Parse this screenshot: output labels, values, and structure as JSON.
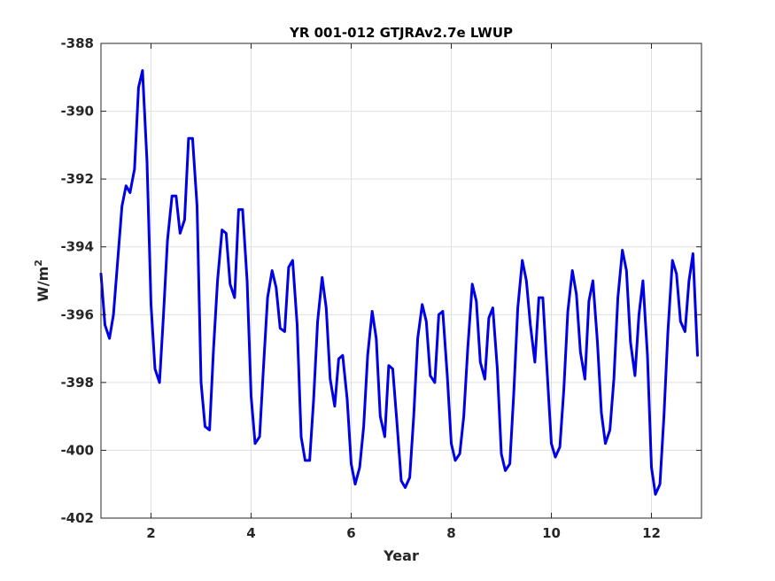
{
  "chart_data": {
    "type": "line",
    "title": "YR 001-012 GTJRAv2.7e LWUP",
    "xlabel": "Year",
    "ylabel_base": "W/m",
    "ylabel_sup": "2",
    "xlim": [
      1,
      13
    ],
    "ylim": [
      -402,
      -388
    ],
    "xticks": [
      2,
      4,
      6,
      8,
      10,
      12
    ],
    "yticks": [
      -402,
      -400,
      -398,
      -396,
      -394,
      -392,
      -390,
      -388
    ],
    "grid": true,
    "series": [
      {
        "color": "#0000e6",
        "points": [
          [
            1.0,
            -394.8
          ],
          [
            1.08,
            -396.3
          ],
          [
            1.17,
            -396.7
          ],
          [
            1.25,
            -396.0
          ],
          [
            1.33,
            -394.5
          ],
          [
            1.42,
            -392.8
          ],
          [
            1.5,
            -392.2
          ],
          [
            1.58,
            -392.4
          ],
          [
            1.67,
            -391.7
          ],
          [
            1.75,
            -389.3
          ],
          [
            1.83,
            -388.8
          ],
          [
            1.92,
            -391.5
          ],
          [
            2.0,
            -395.7
          ],
          [
            2.08,
            -397.6
          ],
          [
            2.17,
            -398.0
          ],
          [
            2.25,
            -396.0
          ],
          [
            2.33,
            -393.8
          ],
          [
            2.42,
            -392.5
          ],
          [
            2.5,
            -392.5
          ],
          [
            2.58,
            -393.6
          ],
          [
            2.67,
            -393.2
          ],
          [
            2.75,
            -390.8
          ],
          [
            2.83,
            -390.8
          ],
          [
            2.92,
            -392.8
          ],
          [
            3.0,
            -398.0
          ],
          [
            3.08,
            -399.3
          ],
          [
            3.17,
            -399.4
          ],
          [
            3.25,
            -397.0
          ],
          [
            3.33,
            -395.0
          ],
          [
            3.42,
            -393.5
          ],
          [
            3.5,
            -393.6
          ],
          [
            3.58,
            -395.1
          ],
          [
            3.67,
            -395.5
          ],
          [
            3.75,
            -392.9
          ],
          [
            3.83,
            -392.9
          ],
          [
            3.92,
            -395.0
          ],
          [
            4.0,
            -398.4
          ],
          [
            4.08,
            -399.8
          ],
          [
            4.17,
            -399.6
          ],
          [
            4.25,
            -397.5
          ],
          [
            4.33,
            -395.5
          ],
          [
            4.42,
            -394.7
          ],
          [
            4.5,
            -395.2
          ],
          [
            4.58,
            -396.4
          ],
          [
            4.67,
            -396.5
          ],
          [
            4.75,
            -394.6
          ],
          [
            4.83,
            -394.4
          ],
          [
            4.92,
            -396.3
          ],
          [
            5.0,
            -399.6
          ],
          [
            5.08,
            -400.3
          ],
          [
            5.17,
            -400.3
          ],
          [
            5.25,
            -398.5
          ],
          [
            5.33,
            -396.2
          ],
          [
            5.42,
            -394.9
          ],
          [
            5.5,
            -395.8
          ],
          [
            5.58,
            -397.9
          ],
          [
            5.67,
            -398.7
          ],
          [
            5.75,
            -397.3
          ],
          [
            5.83,
            -397.2
          ],
          [
            5.92,
            -398.5
          ],
          [
            6.0,
            -400.4
          ],
          [
            6.08,
            -401.0
          ],
          [
            6.17,
            -400.5
          ],
          [
            6.25,
            -399.3
          ],
          [
            6.33,
            -397.2
          ],
          [
            6.42,
            -395.9
          ],
          [
            6.5,
            -396.7
          ],
          [
            6.58,
            -399.0
          ],
          [
            6.67,
            -399.6
          ],
          [
            6.75,
            -397.5
          ],
          [
            6.83,
            -397.6
          ],
          [
            6.92,
            -399.3
          ],
          [
            7.0,
            -400.9
          ],
          [
            7.08,
            -401.1
          ],
          [
            7.17,
            -400.8
          ],
          [
            7.25,
            -399.0
          ],
          [
            7.33,
            -396.7
          ],
          [
            7.42,
            -395.7
          ],
          [
            7.5,
            -396.2
          ],
          [
            7.58,
            -397.8
          ],
          [
            7.67,
            -398.0
          ],
          [
            7.75,
            -396.0
          ],
          [
            7.83,
            -395.9
          ],
          [
            7.92,
            -397.8
          ],
          [
            8.0,
            -399.8
          ],
          [
            8.08,
            -400.3
          ],
          [
            8.17,
            -400.1
          ],
          [
            8.25,
            -399.0
          ],
          [
            8.33,
            -397.0
          ],
          [
            8.42,
            -395.1
          ],
          [
            8.5,
            -395.6
          ],
          [
            8.58,
            -397.4
          ],
          [
            8.67,
            -397.9
          ],
          [
            8.75,
            -396.1
          ],
          [
            8.83,
            -395.8
          ],
          [
            8.92,
            -397.6
          ],
          [
            9.0,
            -400.1
          ],
          [
            9.08,
            -400.6
          ],
          [
            9.17,
            -400.4
          ],
          [
            9.25,
            -398.3
          ],
          [
            9.33,
            -395.8
          ],
          [
            9.42,
            -394.4
          ],
          [
            9.5,
            -395.0
          ],
          [
            9.58,
            -396.3
          ],
          [
            9.67,
            -397.4
          ],
          [
            9.75,
            -395.5
          ],
          [
            9.83,
            -395.5
          ],
          [
            9.92,
            -397.8
          ],
          [
            10.0,
            -399.8
          ],
          [
            10.08,
            -400.2
          ],
          [
            10.17,
            -399.9
          ],
          [
            10.25,
            -398.2
          ],
          [
            10.33,
            -395.9
          ],
          [
            10.42,
            -394.7
          ],
          [
            10.5,
            -395.4
          ],
          [
            10.58,
            -397.1
          ],
          [
            10.67,
            -397.9
          ],
          [
            10.75,
            -395.6
          ],
          [
            10.83,
            -395.0
          ],
          [
            10.92,
            -396.8
          ],
          [
            11.0,
            -398.9
          ],
          [
            11.08,
            -399.8
          ],
          [
            11.17,
            -399.4
          ],
          [
            11.25,
            -397.9
          ],
          [
            11.33,
            -395.5
          ],
          [
            11.42,
            -394.1
          ],
          [
            11.5,
            -394.7
          ],
          [
            11.58,
            -396.8
          ],
          [
            11.67,
            -397.8
          ],
          [
            11.75,
            -396.0
          ],
          [
            11.83,
            -395.0
          ],
          [
            11.92,
            -397.2
          ],
          [
            12.0,
            -400.5
          ],
          [
            12.08,
            -401.3
          ],
          [
            12.17,
            -401.0
          ],
          [
            12.25,
            -399.0
          ],
          [
            12.33,
            -396.5
          ],
          [
            12.42,
            -394.4
          ],
          [
            12.5,
            -394.8
          ],
          [
            12.58,
            -396.2
          ],
          [
            12.67,
            -396.5
          ],
          [
            12.75,
            -395.0
          ],
          [
            12.83,
            -394.2
          ],
          [
            12.92,
            -397.2
          ]
        ]
      }
    ]
  }
}
